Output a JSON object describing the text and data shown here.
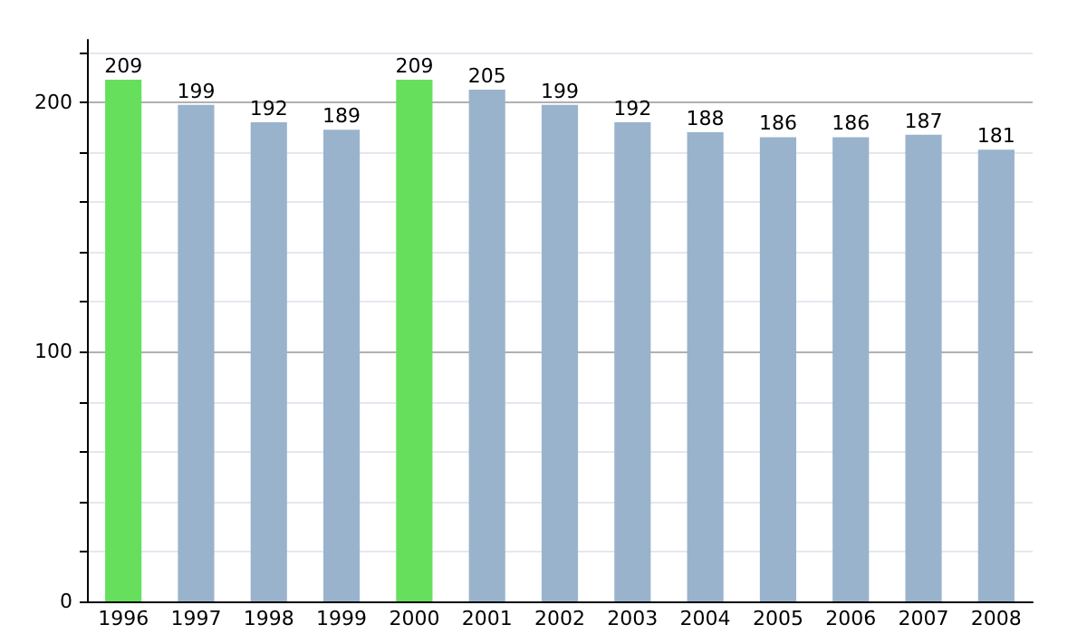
{
  "chart_data": {
    "type": "bar",
    "categories": [
      "1996",
      "1997",
      "1998",
      "1999",
      "2000",
      "2001",
      "2002",
      "2003",
      "2004",
      "2005",
      "2006",
      "2007",
      "2008"
    ],
    "values": [
      209,
      199,
      192,
      189,
      209,
      205,
      199,
      192,
      188,
      186,
      186,
      187,
      181
    ],
    "colors": [
      "#66e05c",
      "#9ab3cc",
      "#9ab3cc",
      "#9ab3cc",
      "#66e05c",
      "#9ab3cc",
      "#9ab3cc",
      "#9ab3cc",
      "#9ab3cc",
      "#9ab3cc",
      "#9ab3cc",
      "#9ab3cc",
      "#9ab3cc"
    ],
    "ylim": [
      0,
      225
    ],
    "yticks": [
      0,
      {
        "value": 20,
        "label": null
      },
      {
        "value": 40,
        "label": null
      },
      {
        "value": 60,
        "label": null
      },
      {
        "value": 80,
        "label": null
      },
      100,
      {
        "value": 120,
        "label": null
      },
      {
        "value": 140,
        "label": null
      },
      {
        "value": 160,
        "label": null
      },
      {
        "value": 180,
        "label": null
      },
      200,
      {
        "value": 220,
        "label": null
      }
    ],
    "grid": true,
    "data_labels": true
  }
}
